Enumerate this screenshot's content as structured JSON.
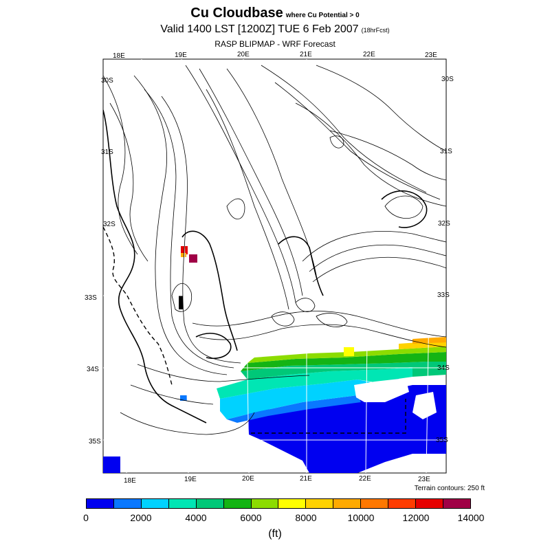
{
  "title": {
    "main": "Cu Cloudbase",
    "sub": "where Cu Potential > 0",
    "valid": "Valid 1400 LST [1200Z] TUE 6 Feb 2007",
    "forecast": "(18hrFcst)",
    "model": "RASP BLIPMAP - WRF Forecast"
  },
  "map": {
    "lon_top_labels": [
      "18E",
      "19E",
      "20E",
      "21E",
      "22E",
      "23E"
    ],
    "lon_bottom_labels": [
      "18E",
      "19E",
      "20E",
      "21E",
      "22E",
      "23E"
    ],
    "lat_left_labels": [
      "30S",
      "31S",
      "32S",
      "33S",
      "34S",
      "35S"
    ],
    "lat_right_labels": [
      "30S",
      "31S",
      "32S",
      "33S",
      "34S",
      "35S"
    ],
    "terrain_note": "Terrain contours: 250 ft"
  },
  "colorbar": {
    "colors": [
      "#0000f0",
      "#0a78ff",
      "#00d2ff",
      "#00e6b4",
      "#00c878",
      "#14b414",
      "#8cdc00",
      "#ffff00",
      "#ffd200",
      "#ffaa00",
      "#ff7800",
      "#ff3c00",
      "#e60000",
      "#a00046"
    ],
    "labels": [
      "0",
      "2000",
      "4000",
      "6000",
      "8000",
      "10000",
      "12000",
      "14000"
    ],
    "unit": "(ft)"
  }
}
